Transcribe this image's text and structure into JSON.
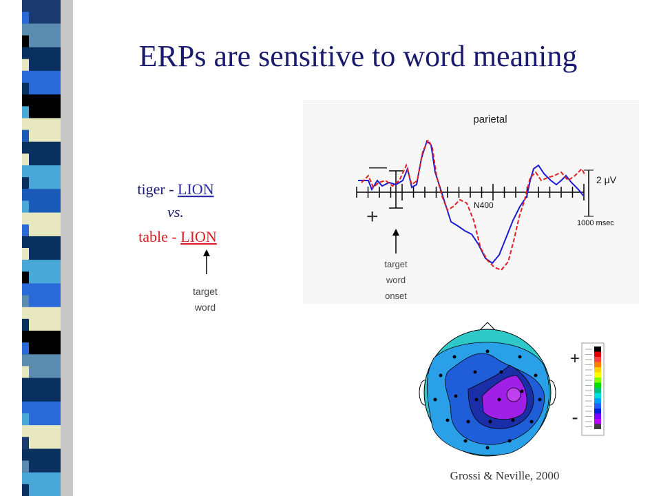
{
  "title": "ERPs are sensitive to word meaning",
  "pairs": {
    "line1_prefix": "tiger - ",
    "line1_word": "LION",
    "line2": "vs.",
    "line3_prefix": "table - ",
    "line3_word": "LION",
    "arrow_label": [
      "target",
      "word"
    ]
  },
  "erp": {
    "region": "parietal",
    "minus_sign": "—",
    "plus_sign": "+",
    "scale": "2 μV",
    "component": "N400",
    "time_scale": "1000 msec",
    "onset_label": [
      "target",
      "word",
      "onset"
    ]
  },
  "colorbar": {
    "plus": "+",
    "minus": "-"
  },
  "citation": "Grossi & Neville, 2000"
}
